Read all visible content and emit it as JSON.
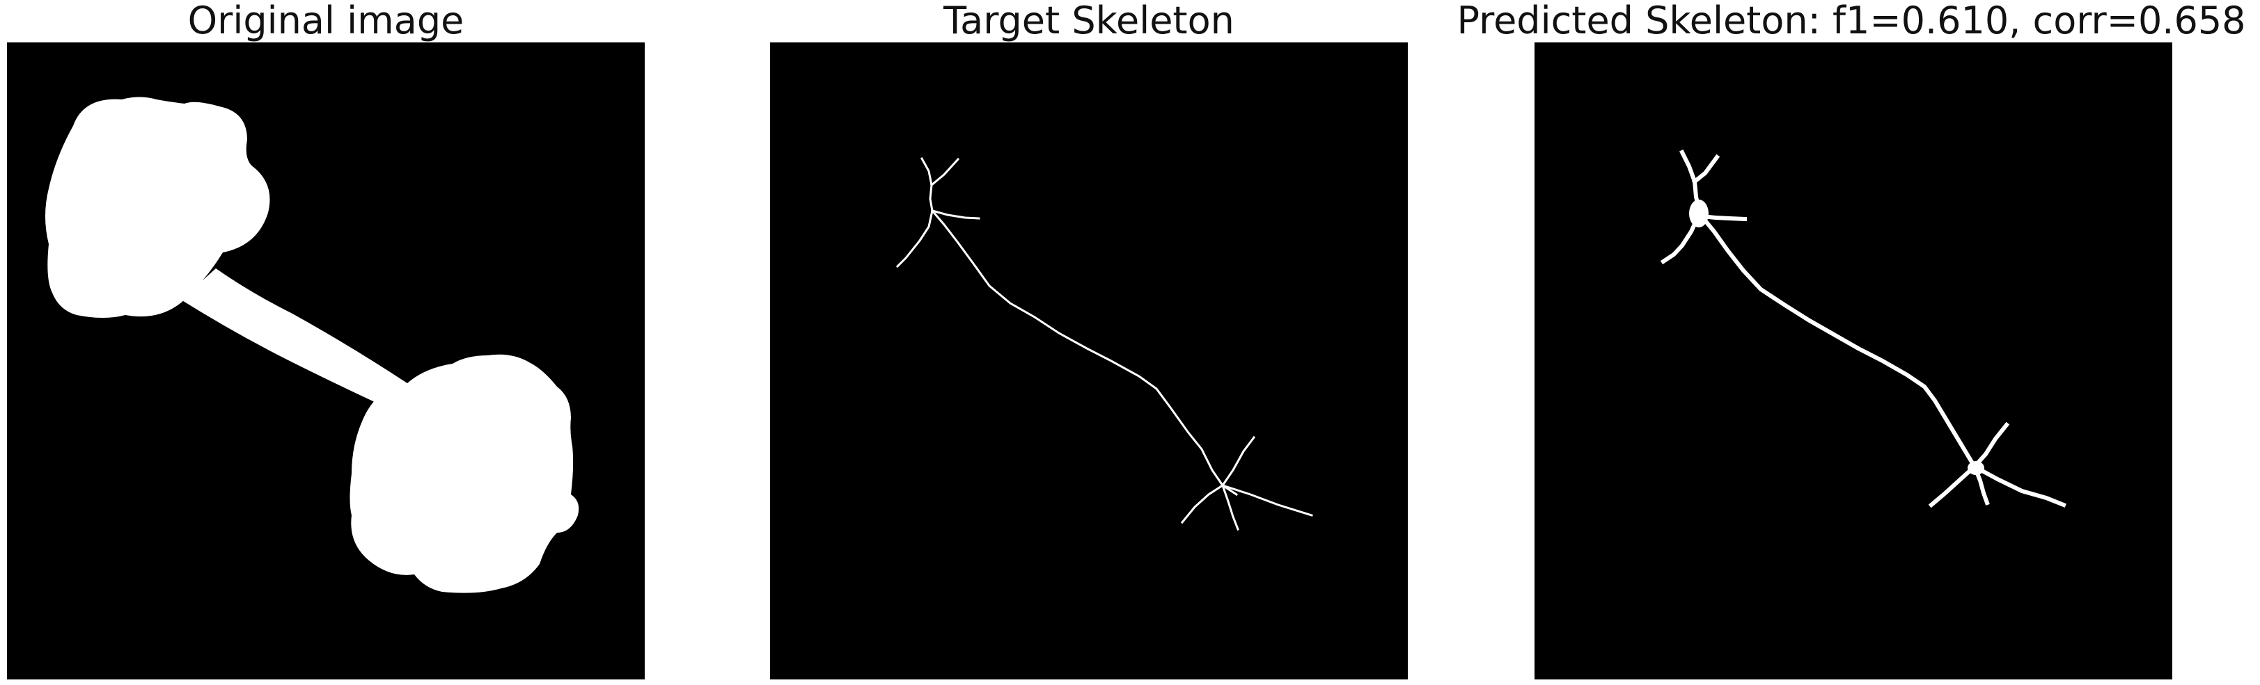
{
  "panels": [
    {
      "title": "Original image",
      "icon": "dumbbell-silhouette-image"
    },
    {
      "title": "Target Skeleton",
      "icon": "thin-skeleton-image"
    },
    {
      "title": "Predicted Skeleton: f1=0.610, corr=0.658",
      "icon": "thick-skeleton-image"
    }
  ],
  "colors": {
    "background": "#000000",
    "foreground": "#ffffff"
  }
}
